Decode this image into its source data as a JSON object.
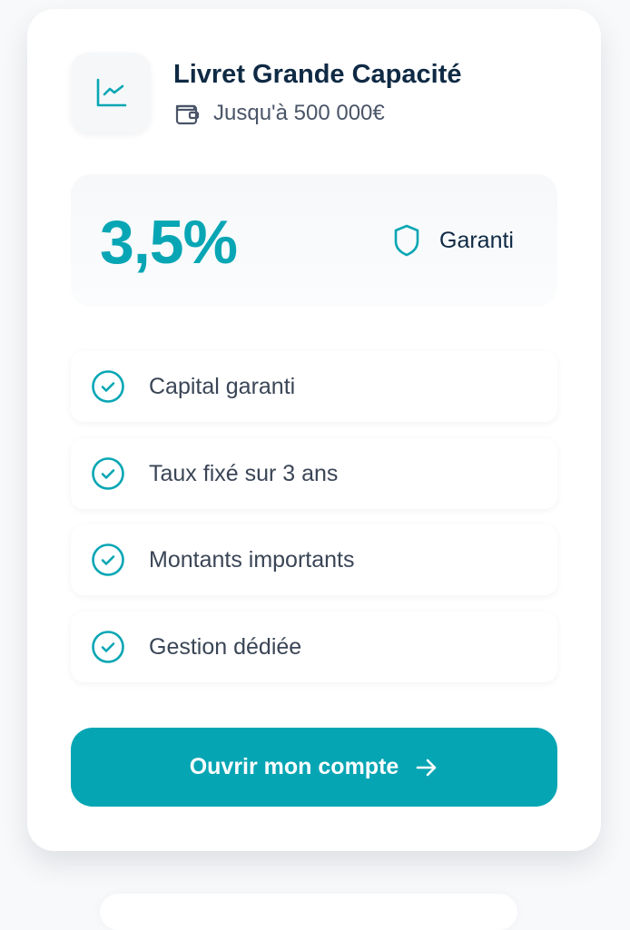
{
  "card": {
    "title": "Livret Grande Capacité",
    "subtitle": "Jusqu'à 500 000€",
    "icon": "chart-line-icon",
    "subtitle_icon": "wallet-icon",
    "rate": "3,5%",
    "badge": "Garanti",
    "badge_icon": "shield-icon",
    "features": [
      {
        "label": "Capital garanti",
        "icon": "check-circle-icon"
      },
      {
        "label": "Taux fixé sur 3 ans",
        "icon": "check-circle-icon"
      },
      {
        "label": "Montants importants",
        "icon": "check-circle-icon"
      },
      {
        "label": "Gestion dédiée",
        "icon": "check-circle-icon"
      }
    ],
    "cta_label": "Ouvrir mon compte",
    "cta_icon": "arrow-right-icon"
  },
  "colors": {
    "accent": "#06a5b4",
    "title": "#0f2a44"
  }
}
